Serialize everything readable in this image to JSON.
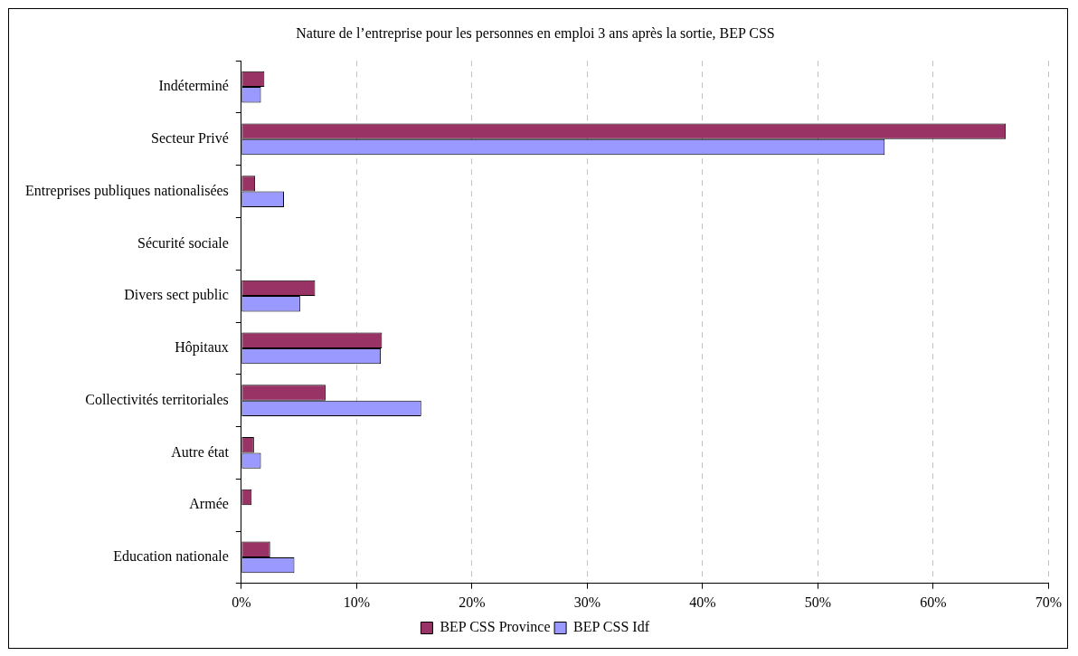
{
  "chart_data": {
    "type": "bar",
    "orientation": "horizontal",
    "title": "Nature de l’entreprise pour les personnes en emploi 3 ans après la sortie, BEP CSS",
    "categories": [
      "Indéterminé",
      "Secteur Privé",
      "Entreprises publiques nationalisées",
      "Sécurité sociale",
      "Divers sect public",
      "Hôpitaux",
      "Collectivités territoriales",
      "Autre état",
      "Armée",
      "Education nationale"
    ],
    "series": [
      {
        "name": "BEP CSS Idf",
        "color": "#9999ff",
        "values": [
          1.7,
          55.8,
          3.7,
          0,
          5.1,
          12.1,
          15.6,
          1.7,
          0,
          4.6
        ]
      },
      {
        "name": "BEP CSS Province",
        "color": "#993366",
        "values": [
          2.0,
          66.3,
          1.2,
          0,
          6.4,
          12.2,
          7.3,
          1.1,
          0.9,
          2.5
        ]
      }
    ],
    "xlim": [
      0,
      70
    ],
    "xticks": [
      {
        "value": 0,
        "label": "0%"
      },
      {
        "value": 10,
        "label": "10%"
      },
      {
        "value": 20,
        "label": "20%"
      },
      {
        "value": 30,
        "label": "30%"
      },
      {
        "value": 40,
        "label": "40%"
      },
      {
        "value": 50,
        "label": "50%"
      },
      {
        "value": 60,
        "label": "60%"
      },
      {
        "value": 70,
        "label": "70%"
      }
    ],
    "grid": "x",
    "legend": "bottom"
  }
}
